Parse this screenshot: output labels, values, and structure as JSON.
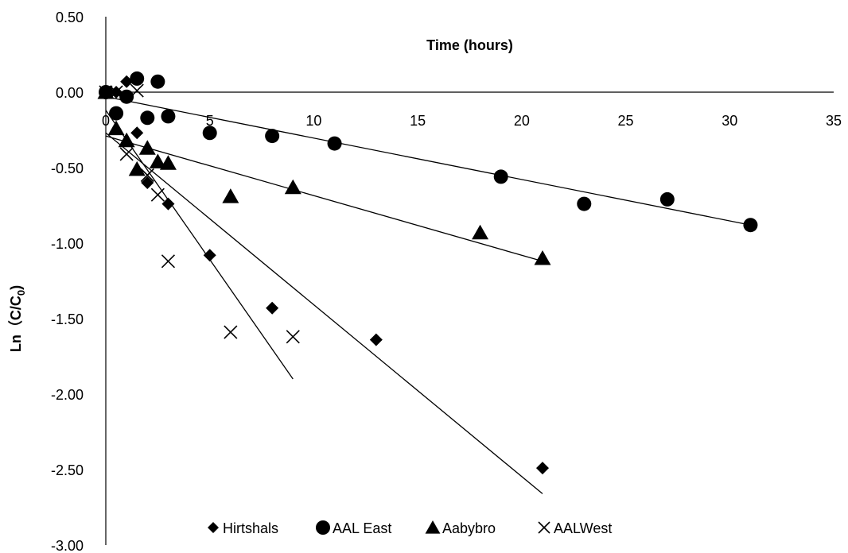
{
  "chart_data": {
    "type": "scatter",
    "title": "",
    "xlabel": "Time (hours)",
    "ylabel_main": "Ln（C/C",
    "ylabel_sub": "0",
    "ylabel_close": ")",
    "xlim": [
      0,
      35
    ],
    "ylim": [
      -3.0,
      0.5
    ],
    "xticks": [
      0,
      5,
      10,
      15,
      20,
      25,
      30,
      35
    ],
    "xtick_labels": [
      "0",
      "5",
      "10",
      "15",
      "20",
      "25",
      "30",
      "35"
    ],
    "yticks": [
      0.5,
      0.0,
      -0.5,
      -1.0,
      -1.5,
      -2.0,
      -2.5,
      -3.0
    ],
    "ytick_labels": [
      "0.50",
      "0.00",
      "-0.50",
      "-1.00",
      "-1.50",
      "-2.00",
      "-2.50",
      "-3.00"
    ],
    "grid": false,
    "legend_position": "bottom",
    "series": [
      {
        "name": "Hirtshals",
        "marker": "diamond",
        "x": [
          0,
          0.5,
          1.0,
          1.5,
          2.0,
          3.0,
          5.0,
          8.0,
          13.0,
          21.0
        ],
        "y": [
          0.0,
          0.0,
          0.07,
          -0.27,
          -0.6,
          -0.74,
          -1.08,
          -1.43,
          -1.64,
          -2.49
        ],
        "trend": {
          "x": [
            0,
            21
          ],
          "y": [
            -0.27,
            -2.66
          ]
        }
      },
      {
        "name": "AAL East",
        "marker": "circle",
        "x": [
          0,
          0.5,
          1.0,
          1.5,
          2.0,
          2.5,
          3.0,
          5.0,
          8.0,
          11.0,
          19.0,
          23.0,
          27.0,
          31.0
        ],
        "y": [
          0.0,
          -0.14,
          -0.03,
          0.09,
          -0.17,
          0.07,
          -0.16,
          -0.27,
          -0.29,
          -0.34,
          -0.56,
          -0.74,
          -0.71,
          -0.88
        ],
        "trend": {
          "x": [
            0,
            31
          ],
          "y": [
            -0.03,
            -0.88
          ]
        }
      },
      {
        "name": "Aabybro",
        "marker": "triangle",
        "x": [
          0,
          0.5,
          1.0,
          1.5,
          2.0,
          2.5,
          3.0,
          6.0,
          9.0,
          18.0,
          21.0
        ],
        "y": [
          0.0,
          -0.24,
          -0.32,
          -0.51,
          -0.37,
          -0.46,
          -0.47,
          -0.69,
          -0.63,
          -0.93,
          -1.1
        ],
        "trend": {
          "x": [
            0,
            21
          ],
          "y": [
            -0.29,
            -1.12
          ]
        }
      },
      {
        "name": "AALWest",
        "marker": "x",
        "x": [
          0,
          0.5,
          1.0,
          1.5,
          2.0,
          2.5,
          3.0,
          6.0,
          9.0
        ],
        "y": [
          0.0,
          0.0,
          -0.41,
          0.01,
          -0.55,
          -0.68,
          -1.12,
          -1.59,
          -1.62
        ],
        "trend": {
          "x": [
            0,
            9
          ],
          "y": [
            -0.12,
            -1.9
          ]
        }
      }
    ]
  }
}
